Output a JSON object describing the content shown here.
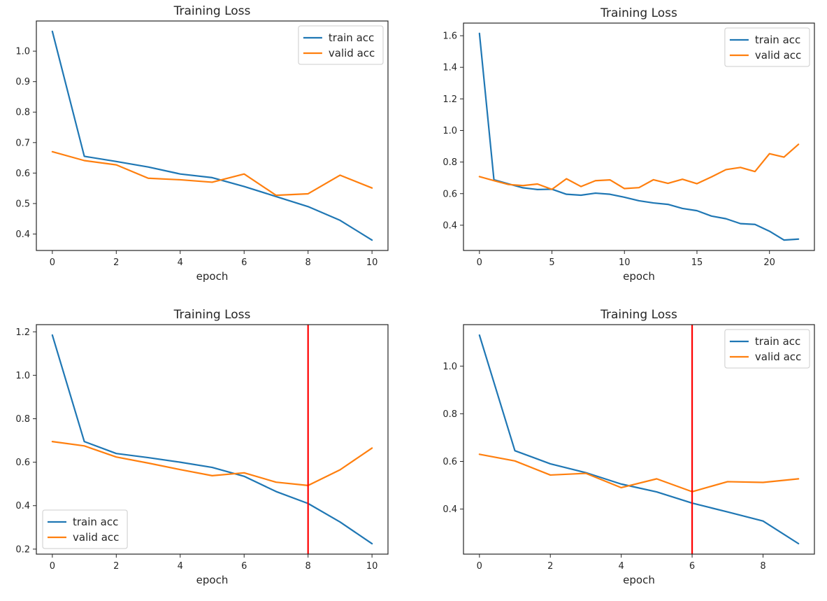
{
  "figure": {
    "background": "#ffffff"
  },
  "palette": {
    "train": "#1f77b4",
    "valid": "#ff7f0e",
    "vline": "#ff0000",
    "axis": "#262626",
    "legend_border": "#cccccc"
  },
  "chart_data": [
    {
      "type": "line",
      "title": "Training Loss",
      "xlabel": "epoch",
      "ylabel": "",
      "grid": false,
      "x": [
        0,
        1,
        2,
        3,
        4,
        5,
        6,
        7,
        8,
        9,
        10
      ],
      "series": [
        {
          "name": "train acc",
          "color": "#1f77b4",
          "values": [
            1.065,
            0.655,
            0.638,
            0.62,
            0.597,
            0.585,
            0.556,
            0.523,
            0.49,
            0.445,
            0.38
          ]
        },
        {
          "name": "valid acc",
          "color": "#ff7f0e",
          "values": [
            0.67,
            0.641,
            0.627,
            0.583,
            0.578,
            0.57,
            0.597,
            0.527,
            0.532,
            0.593,
            0.551
          ]
        }
      ],
      "xlim": [
        -0.5,
        10.5
      ],
      "ylim": [
        0.346,
        1.099
      ],
      "xticks": [
        0,
        2,
        4,
        6,
        8,
        10
      ],
      "yticks": [
        0.4,
        0.5,
        0.6,
        0.7,
        0.8,
        0.9,
        1.0
      ],
      "legend_position": "upper-right",
      "vline_x": null
    },
    {
      "type": "line",
      "title": "Training Loss",
      "xlabel": "epoch",
      "ylabel": "",
      "grid": false,
      "x": [
        0,
        1,
        2,
        3,
        4,
        5,
        6,
        7,
        8,
        9,
        10,
        11,
        12,
        13,
        14,
        15,
        16,
        17,
        18,
        19,
        20,
        21,
        22
      ],
      "series": [
        {
          "name": "train acc",
          "color": "#1f77b4",
          "values": [
            1.615,
            0.688,
            0.662,
            0.637,
            0.626,
            0.628,
            0.596,
            0.59,
            0.603,
            0.596,
            0.577,
            0.555,
            0.541,
            0.532,
            0.506,
            0.492,
            0.458,
            0.441,
            0.41,
            0.405,
            0.362,
            0.306,
            0.312
          ]
        },
        {
          "name": "valid acc",
          "color": "#ff7f0e",
          "values": [
            0.708,
            0.682,
            0.658,
            0.651,
            0.661,
            0.627,
            0.694,
            0.645,
            0.682,
            0.687,
            0.632,
            0.638,
            0.688,
            0.665,
            0.691,
            0.663,
            0.706,
            0.752,
            0.766,
            0.74,
            0.853,
            0.831,
            0.912
          ]
        }
      ],
      "xlim": [
        -1.1,
        23.1
      ],
      "ylim": [
        0.24,
        1.68
      ],
      "xticks": [
        0,
        5,
        10,
        15,
        20
      ],
      "yticks": [
        0.4,
        0.6,
        0.8,
        1.0,
        1.2,
        1.4,
        1.6
      ],
      "legend_position": "upper-right",
      "vline_x": null
    },
    {
      "type": "line",
      "title": "Training Loss",
      "xlabel": "epoch",
      "ylabel": "",
      "grid": false,
      "x": [
        0,
        1,
        2,
        3,
        4,
        5,
        6,
        7,
        8,
        9,
        10
      ],
      "series": [
        {
          "name": "train acc",
          "color": "#1f77b4",
          "values": [
            1.185,
            0.695,
            0.64,
            0.621,
            0.6,
            0.576,
            0.535,
            0.465,
            0.41,
            0.325,
            0.225
          ]
        },
        {
          "name": "valid acc",
          "color": "#ff7f0e",
          "values": [
            0.695,
            0.675,
            0.624,
            0.596,
            0.566,
            0.538,
            0.551,
            0.508,
            0.493,
            0.565,
            0.665
          ]
        }
      ],
      "xlim": [
        -0.5,
        10.5
      ],
      "ylim": [
        0.177,
        1.233
      ],
      "xticks": [
        0,
        2,
        4,
        6,
        8,
        10
      ],
      "yticks": [
        0.2,
        0.4,
        0.6,
        0.8,
        1.0,
        1.2
      ],
      "legend_position": "lower-left",
      "vline_x": 8
    },
    {
      "type": "line",
      "title": "Training Loss",
      "xlabel": "epoch",
      "ylabel": "",
      "grid": false,
      "x": [
        0,
        1,
        2,
        3,
        4,
        5,
        6,
        7,
        8,
        9
      ],
      "series": [
        {
          "name": "train acc",
          "color": "#1f77b4",
          "values": [
            1.13,
            0.645,
            0.59,
            0.553,
            0.505,
            0.472,
            0.425,
            0.388,
            0.35,
            0.255
          ]
        },
        {
          "name": "valid acc",
          "color": "#ff7f0e",
          "values": [
            0.63,
            0.602,
            0.543,
            0.55,
            0.49,
            0.527,
            0.473,
            0.515,
            0.512,
            0.527
          ]
        }
      ],
      "xlim": [
        -0.45,
        9.45
      ],
      "ylim": [
        0.211,
        1.174
      ],
      "xticks": [
        0,
        2,
        4,
        6,
        8
      ],
      "yticks": [
        0.4,
        0.6,
        0.8,
        1.0
      ],
      "legend_position": "upper-right",
      "vline_x": 6
    }
  ]
}
